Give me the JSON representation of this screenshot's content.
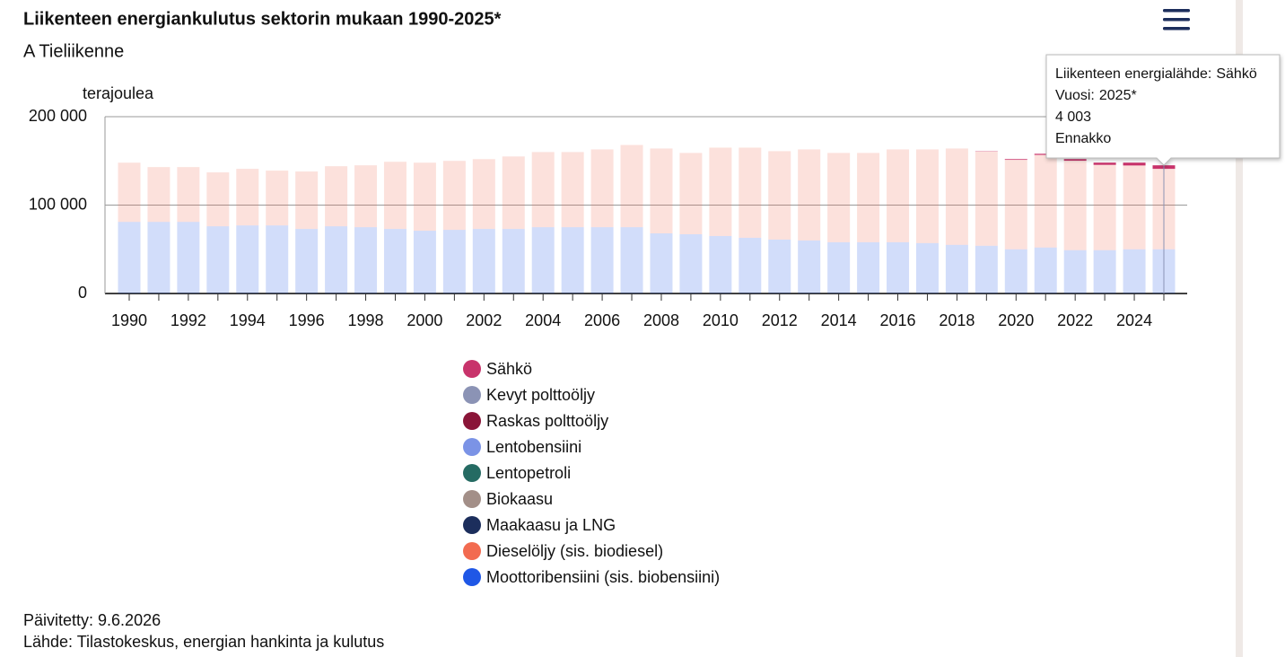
{
  "chart_data": {
    "type": "stacked_bar",
    "title": "Liikenteen energiankulutus sektorin mukaan 1990-2025*",
    "subtitle": "A Tieliikenne",
    "y_label": "terajoulea",
    "categories": [
      "1990",
      null,
      "1992",
      null,
      "1994",
      null,
      "1996",
      null,
      "1998",
      null,
      "2000",
      null,
      "2002",
      null,
      "2004",
      null,
      "2006",
      null,
      "2008",
      null,
      "2010",
      null,
      "2012",
      null,
      "2014",
      null,
      "2016",
      null,
      "2018",
      null,
      "2020",
      null,
      "2022",
      null,
      "2024",
      "2025*"
    ],
    "ylim": [
      0,
      200000
    ],
    "yticks": [
      0,
      {
        "value": 100000,
        "label": "100 000"
      },
      {
        "value": 200000,
        "label": "200 000"
      }
    ],
    "grid": true,
    "series": [
      {
        "name": "Sähkö",
        "color": "#c8336b",
        "values": [
          0,
          0,
          0,
          0,
          0,
          0,
          0,
          0,
          0,
          0,
          0,
          0,
          0,
          0,
          0,
          0,
          0,
          0,
          0,
          0,
          0,
          0,
          0,
          0,
          0,
          0,
          0,
          0,
          0,
          300,
          800,
          1200,
          1800,
          2500,
          3200,
          4003
        ]
      },
      {
        "name": "Kevyt polttoöljy",
        "color": "#8b93b5",
        "values": [
          0,
          0,
          0,
          0,
          0,
          0,
          0,
          0,
          0,
          0,
          0,
          0,
          0,
          0,
          0,
          0,
          0,
          0,
          0,
          0,
          0,
          0,
          0,
          0,
          0,
          0,
          0,
          0,
          0,
          0,
          0,
          0,
          0,
          0,
          0,
          0
        ]
      },
      {
        "name": "Raskas polttoöljy",
        "color": "#8a1538",
        "values": [
          0,
          0,
          0,
          0,
          0,
          0,
          0,
          0,
          0,
          0,
          0,
          0,
          0,
          0,
          0,
          0,
          0,
          0,
          0,
          0,
          0,
          0,
          0,
          0,
          0,
          0,
          0,
          0,
          0,
          0,
          0,
          0,
          0,
          0,
          0,
          0
        ]
      },
      {
        "name": "Lentobensiini",
        "color": "#7b93e6",
        "values": [
          0,
          0,
          0,
          0,
          0,
          0,
          0,
          0,
          0,
          0,
          0,
          0,
          0,
          0,
          0,
          0,
          0,
          0,
          0,
          0,
          0,
          0,
          0,
          0,
          0,
          0,
          0,
          0,
          0,
          0,
          0,
          0,
          0,
          0,
          0,
          0
        ]
      },
      {
        "name": "Lentopetroli",
        "color": "#256b63",
        "values": [
          0,
          0,
          0,
          0,
          0,
          0,
          0,
          0,
          0,
          0,
          0,
          0,
          0,
          0,
          0,
          0,
          0,
          0,
          0,
          0,
          0,
          0,
          0,
          0,
          0,
          0,
          0,
          0,
          0,
          0,
          0,
          0,
          0,
          0,
          0,
          0
        ]
      },
      {
        "name": "Biokaasu",
        "color": "#a38f88",
        "values": [
          0,
          0,
          0,
          0,
          0,
          0,
          0,
          0,
          0,
          0,
          0,
          0,
          0,
          0,
          0,
          0,
          0,
          0,
          0,
          0,
          0,
          0,
          0,
          0,
          0,
          0,
          0,
          0,
          0,
          0,
          0,
          0,
          0,
          0,
          0,
          0
        ]
      },
      {
        "name": "Maakaasu ja LNG",
        "color": "#1c2e5c",
        "values": [
          0,
          0,
          0,
          0,
          0,
          0,
          0,
          0,
          0,
          0,
          0,
          0,
          0,
          0,
          0,
          0,
          0,
          0,
          0,
          0,
          0,
          0,
          0,
          0,
          0,
          0,
          0,
          0,
          0,
          0,
          0,
          0,
          0,
          0,
          0,
          0
        ]
      },
      {
        "name": "Dieselöljy (sis. biodiesel)",
        "color": "#f26b50",
        "values": [
          67000,
          62000,
          62000,
          61000,
          64000,
          62000,
          65000,
          68000,
          70000,
          76000,
          77000,
          78000,
          79000,
          82000,
          85000,
          85000,
          88000,
          93000,
          96000,
          92000,
          100000,
          102000,
          100000,
          103000,
          101000,
          101000,
          105000,
          106000,
          109000,
          106700,
          101200,
          104800,
          101200,
          96500,
          94800,
          91000
        ]
      },
      {
        "name": "Moottoribensiini (sis. biobensiini)",
        "color": "#1f57e6",
        "values": [
          81000,
          81000,
          81000,
          76000,
          77000,
          77000,
          73000,
          76000,
          75000,
          73000,
          71000,
          72000,
          73000,
          73000,
          75000,
          75000,
          75000,
          75000,
          68000,
          67000,
          65000,
          63000,
          61000,
          60000,
          58000,
          58000,
          58000,
          57000,
          55000,
          54000,
          50000,
          52000,
          49000,
          49000,
          50000,
          50000
        ]
      }
    ],
    "tooltip": {
      "series_prefix": "Liikenteen energialähde:",
      "x_prefix": "Vuosi:",
      "value_label": "4 003",
      "note": "Ennakko"
    },
    "updated": "Päivitetty: 9.6.2026",
    "source": "Lähde: Tilastokeskus, energian hankinta ja kulutus"
  }
}
